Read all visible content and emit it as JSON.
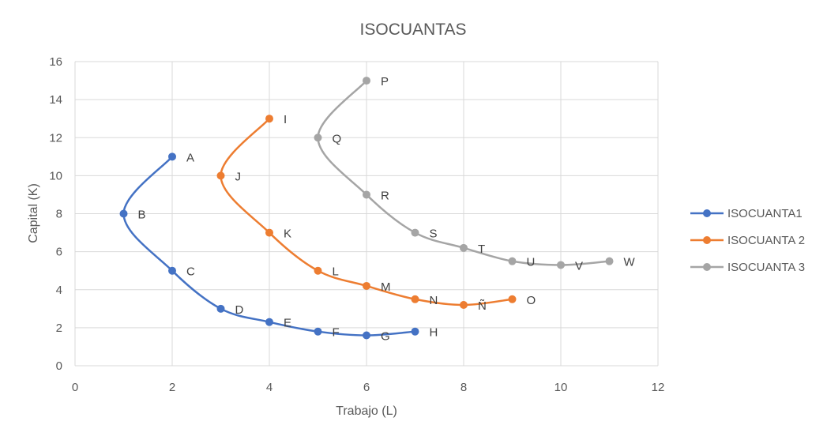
{
  "chart_data": {
    "type": "scatter",
    "title": "ISOCUANTAS",
    "xlabel": "Trabajo (L)",
    "ylabel": "Capital (K)",
    "xlim": [
      0,
      12
    ],
    "ylim": [
      0,
      16
    ],
    "xticks": [
      0,
      2,
      4,
      6,
      8,
      10,
      12
    ],
    "yticks": [
      0,
      2,
      4,
      6,
      8,
      10,
      12,
      14,
      16
    ],
    "grid": true,
    "legend_position": "right",
    "smooth_lines": true,
    "series": [
      {
        "name": "ISOCUANTA1",
        "color": "#4472C4",
        "points": [
          {
            "label": "A",
            "x": 2,
            "y": 11
          },
          {
            "label": "B",
            "x": 1,
            "y": 8
          },
          {
            "label": "C",
            "x": 2,
            "y": 5
          },
          {
            "label": "D",
            "x": 3,
            "y": 3
          },
          {
            "label": "E",
            "x": 4,
            "y": 2.3
          },
          {
            "label": "F",
            "x": 5,
            "y": 1.8
          },
          {
            "label": "G",
            "x": 6,
            "y": 1.6
          },
          {
            "label": "H",
            "x": 7,
            "y": 1.8
          }
        ]
      },
      {
        "name": "ISOCUANTA 2",
        "color": "#ED7D31",
        "points": [
          {
            "label": "I",
            "x": 4,
            "y": 13
          },
          {
            "label": "J",
            "x": 3,
            "y": 10
          },
          {
            "label": "K",
            "x": 4,
            "y": 7
          },
          {
            "label": "L",
            "x": 5,
            "y": 5
          },
          {
            "label": "M",
            "x": 6,
            "y": 4.2
          },
          {
            "label": "N",
            "x": 7,
            "y": 3.5
          },
          {
            "label": "Ñ",
            "x": 8,
            "y": 3.2
          },
          {
            "label": "O",
            "x": 9,
            "y": 3.5
          }
        ]
      },
      {
        "name": "ISOCUANTA 3",
        "color": "#A5A5A5",
        "points": [
          {
            "label": "P",
            "x": 6,
            "y": 15
          },
          {
            "label": "Q",
            "x": 5,
            "y": 12
          },
          {
            "label": "R",
            "x": 6,
            "y": 9
          },
          {
            "label": "S",
            "x": 7,
            "y": 7
          },
          {
            "label": "T",
            "x": 8,
            "y": 6.2
          },
          {
            "label": "U",
            "x": 9,
            "y": 5.5
          },
          {
            "label": "V",
            "x": 10,
            "y": 5.3
          },
          {
            "label": "W",
            "x": 11,
            "y": 5.5
          }
        ]
      }
    ]
  }
}
